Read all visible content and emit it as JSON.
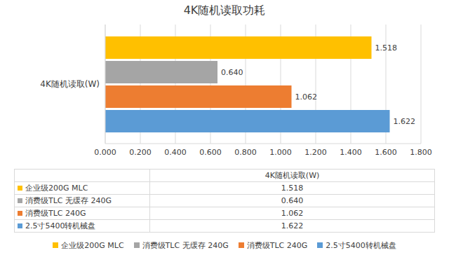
{
  "chart_data": {
    "type": "bar",
    "title": "4K随机读取功耗",
    "orientation": "horizontal",
    "categories": [
      "4K随机读取(W)"
    ],
    "series": [
      {
        "name": "企业级200G MLC",
        "color": "#ffc000",
        "values": [
          1.518
        ],
        "value_labels": [
          "1.518"
        ]
      },
      {
        "name": "消费级TLC 无缓存 240G",
        "color": "#a5a5a5",
        "values": [
          0.64
        ],
        "value_labels": [
          "0.640"
        ]
      },
      {
        "name": "消费级TLC 240G",
        "color": "#ed7d31",
        "values": [
          1.062
        ],
        "value_labels": [
          "1.062"
        ]
      },
      {
        "name": "2.5寸5400转机械盘",
        "color": "#5b9bd5",
        "values": [
          1.622
        ],
        "value_labels": [
          "1.622"
        ]
      }
    ],
    "xlim": [
      0,
      1.8
    ],
    "xticks": [
      {
        "value": 0,
        "label": "0.000"
      },
      {
        "value": 0.2,
        "label": "0.200"
      },
      {
        "value": 0.4,
        "label": "0.400"
      },
      {
        "value": 0.6,
        "label": "0.600"
      },
      {
        "value": 0.8,
        "label": "0.800"
      },
      {
        "value": 1,
        "label": "1.000"
      },
      {
        "value": 1.2,
        "label": "1.200"
      },
      {
        "value": 1.4,
        "label": "1.400"
      },
      {
        "value": 1.6,
        "label": "1.600"
      },
      {
        "value": 1.8,
        "label": "1.800"
      }
    ],
    "grid": true,
    "data_labels": true,
    "legend": "bottom"
  }
}
